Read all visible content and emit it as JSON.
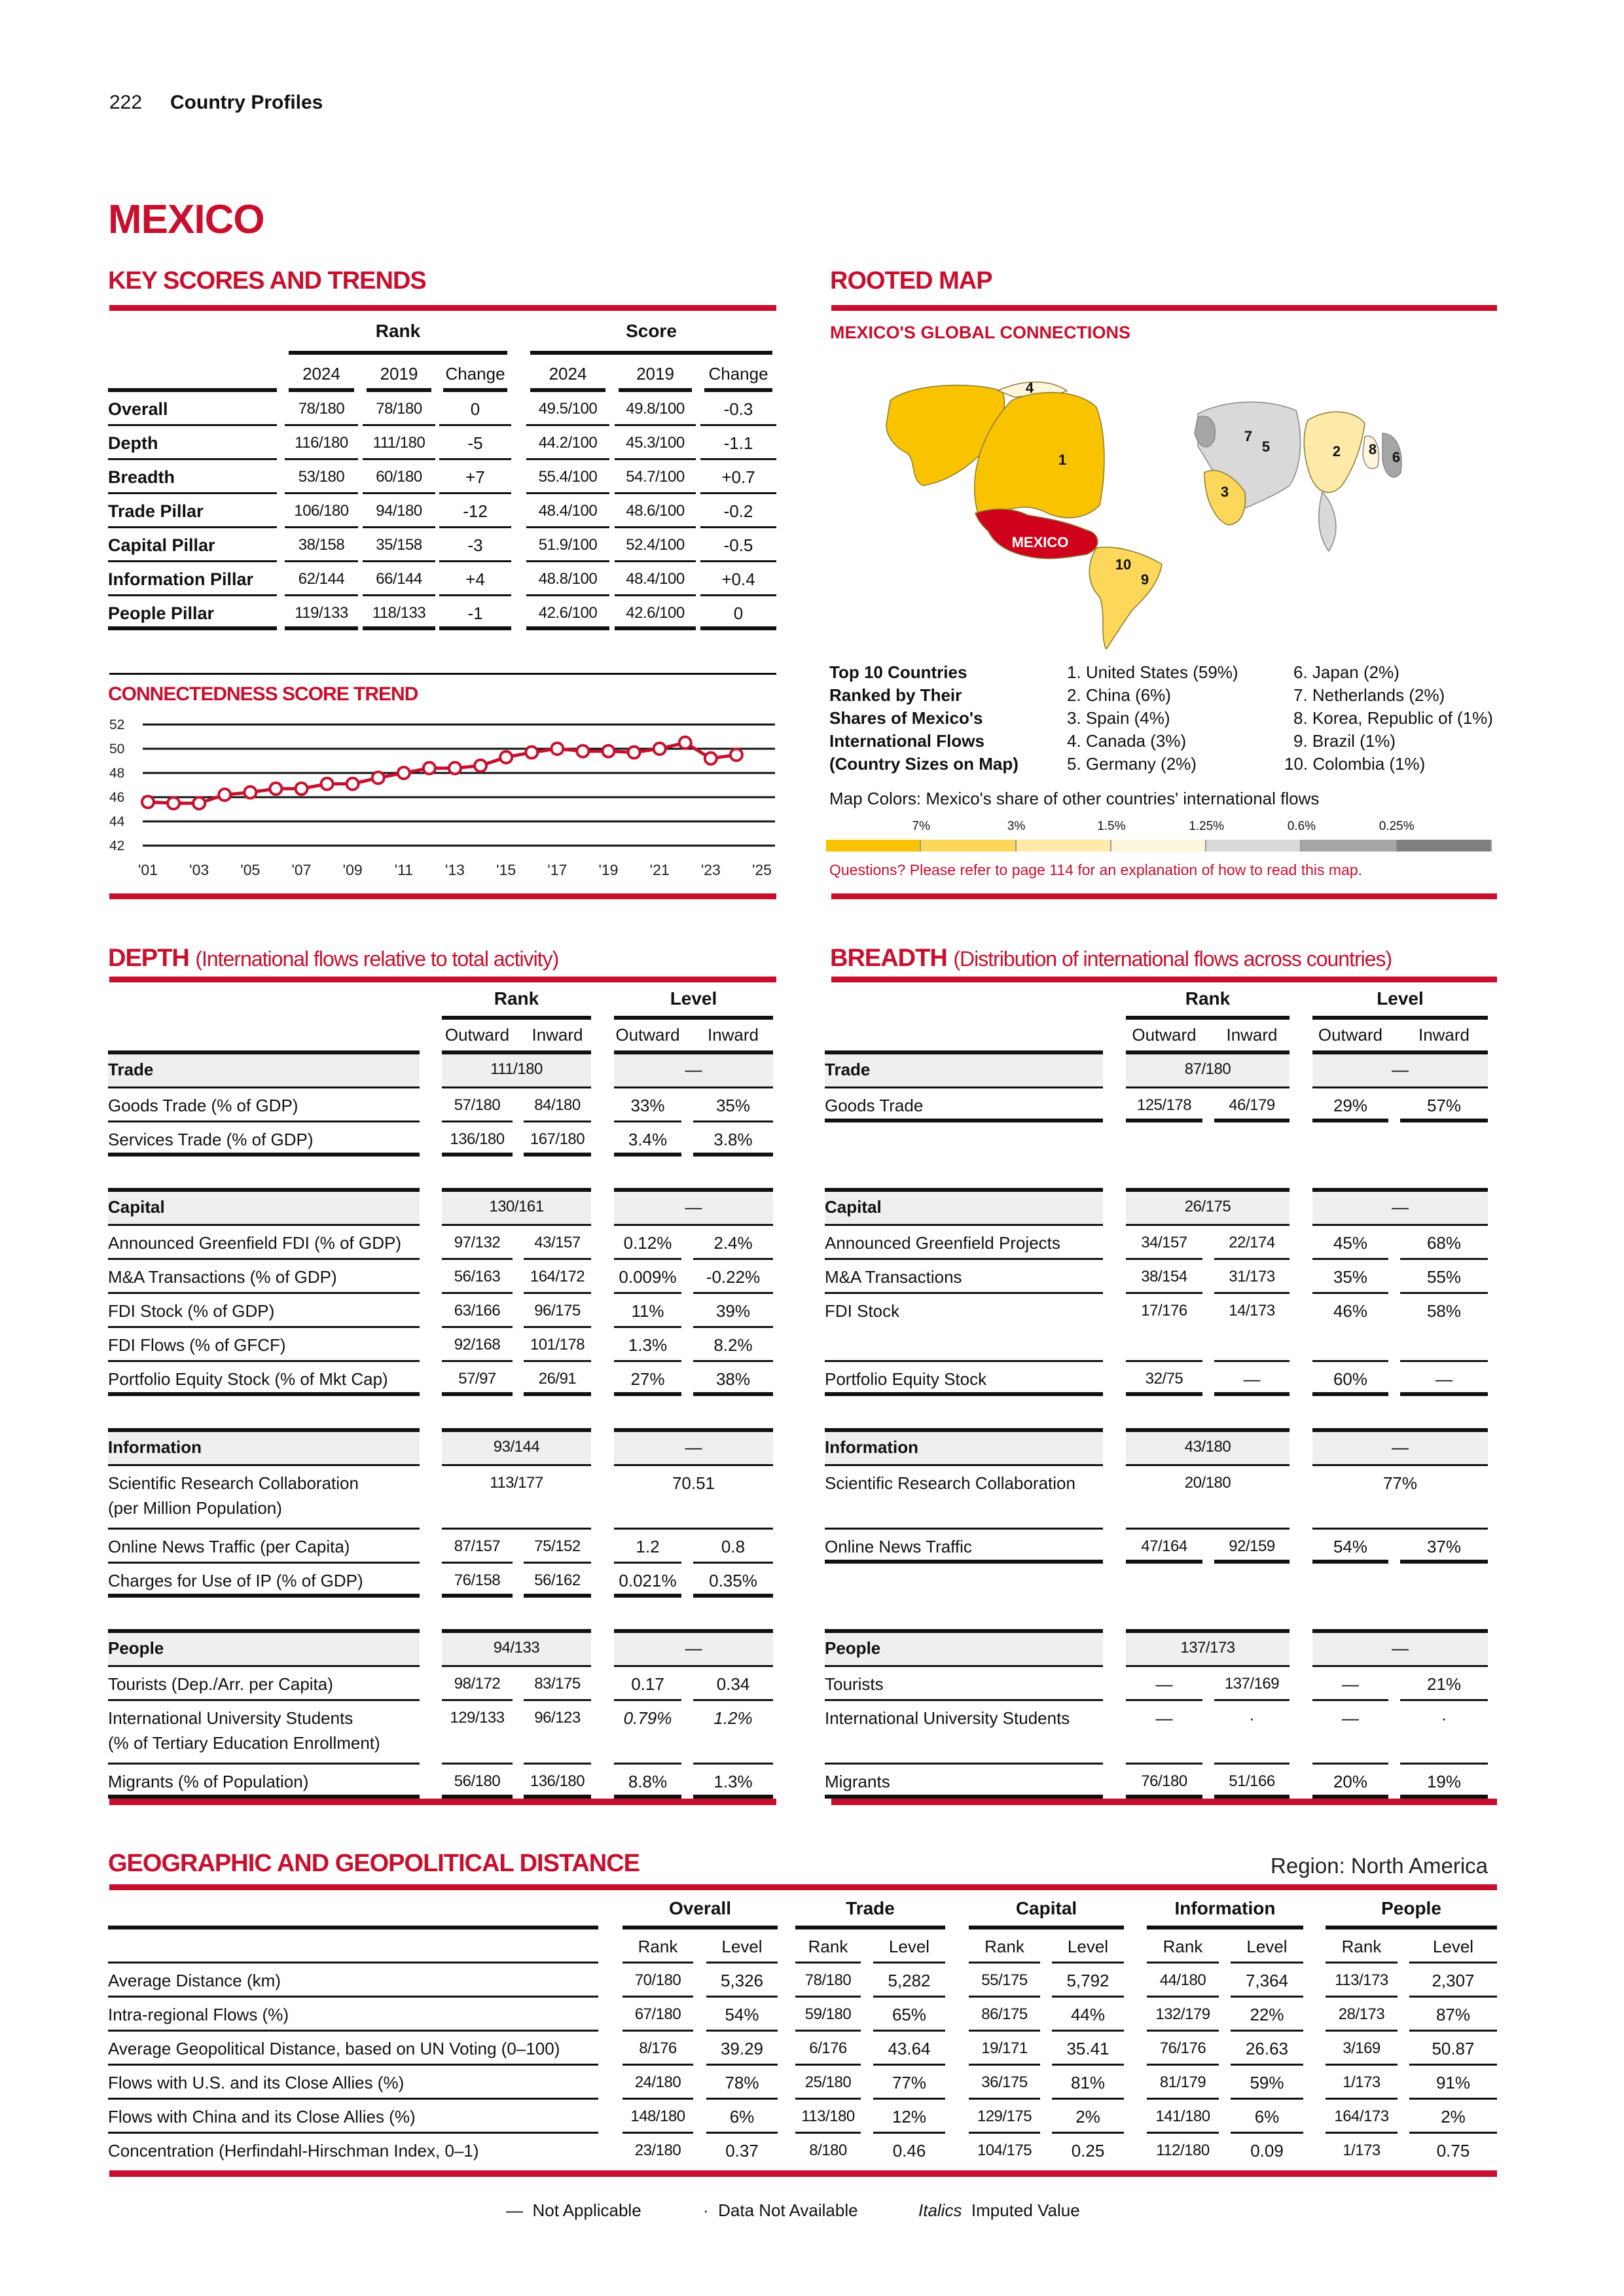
{
  "header": {
    "page_number": "222",
    "section": "Country Profiles"
  },
  "country": "MEXICO",
  "key_scores": {
    "title": "KEY SCORES AND TRENDS",
    "group_rank": "Rank",
    "group_score": "Score",
    "columns": [
      "2024",
      "2019",
      "Change",
      "2024",
      "2019",
      "Change"
    ],
    "rows": [
      {
        "label": "Overall",
        "cells": [
          "78/180",
          "78/180",
          "0",
          "49.5/100",
          "49.8/100",
          "-0.3"
        ]
      },
      {
        "label": "Depth",
        "cells": [
          "116/180",
          "111/180",
          "-5",
          "44.2/100",
          "45.3/100",
          "-1.1"
        ]
      },
      {
        "label": "Breadth",
        "cells": [
          "53/180",
          "60/180",
          "+7",
          "55.4/100",
          "54.7/100",
          "+0.7"
        ]
      },
      {
        "label": "Trade Pillar",
        "cells": [
          "106/180",
          "94/180",
          "-12",
          "48.4/100",
          "48.6/100",
          "-0.2"
        ]
      },
      {
        "label": "Capital Pillar",
        "cells": [
          "38/158",
          "35/158",
          "-3",
          "51.9/100",
          "52.4/100",
          "-0.5"
        ]
      },
      {
        "label": "Information Pillar",
        "cells": [
          "62/144",
          "66/144",
          "+4",
          "48.8/100",
          "48.4/100",
          "+0.4"
        ]
      },
      {
        "label": "People Pillar",
        "cells": [
          "119/133",
          "118/133",
          "-1",
          "42.6/100",
          "42.6/100",
          "0"
        ]
      }
    ]
  },
  "chart_data": {
    "type": "line",
    "title": "CONNECTEDNESS SCORE TREND",
    "x": [
      2001,
      2002,
      2003,
      2004,
      2005,
      2006,
      2007,
      2008,
      2009,
      2010,
      2011,
      2012,
      2013,
      2014,
      2015,
      2016,
      2017,
      2018,
      2019,
      2020,
      2021,
      2022,
      2023,
      2024
    ],
    "values": [
      45.6,
      45.5,
      45.5,
      46.2,
      46.4,
      46.7,
      46.7,
      47.1,
      47.1,
      47.6,
      48.0,
      48.4,
      48.4,
      48.6,
      49.3,
      49.7,
      50.0,
      49.8,
      49.8,
      49.7,
      50.0,
      50.5,
      49.2,
      49.5
    ],
    "ylim": [
      42,
      52
    ],
    "xlim": [
      2001,
      2025
    ],
    "yticks": [
      "52",
      "50",
      "48",
      "46",
      "44",
      "42"
    ],
    "xticks": [
      "'01",
      "'03",
      "'05",
      "'07",
      "'09",
      "'11",
      "'13",
      "'15",
      "'17",
      "'19",
      "'21",
      "'23",
      "'25"
    ],
    "grid": true,
    "color": "#c8102e"
  },
  "rooted_map": {
    "title": "ROOTED MAP",
    "subtitle": "MEXICO'S GLOBAL CONNECTIONS",
    "map_label": "MEXICO",
    "map_numbers": [
      "1",
      "2",
      "3",
      "4",
      "5",
      "6",
      "7",
      "8",
      "9",
      "10"
    ],
    "top10_heading": [
      "Top 10 Countries",
      "Ranked by Their",
      "Shares of Mexico's",
      "International Flows",
      "(Country Sizes on Map)"
    ],
    "top10": [
      "1. United States (59%)",
      "2. China (6%)",
      "3. Spain (4%)",
      "4. Canada (3%)",
      "5. Germany (2%)",
      "6. Japan (2%)",
      "7. Netherlands (2%)",
      "8. Korea, Republic of (1%)",
      "9. Brazil (1%)",
      "10. Colombia (1%)"
    ],
    "colors_caption": "Map Colors: Mexico's share of other countries' international flows",
    "legend_labels": [
      "7%",
      "3%",
      "1.5%",
      "1.25%",
      "0.6%",
      "0.25%"
    ],
    "legend_colors": [
      "#f9c300",
      "#fcd75a",
      "#fde9a8",
      "#fef6dc",
      "#d9d9d9",
      "#a6a6a6",
      "#808080"
    ],
    "note": "Questions? Please refer to page 114 for an explanation of how to read this map."
  },
  "depth": {
    "title": "DEPTH",
    "subtitle": "(International flows relative to total activity)",
    "group_rank": "Rank",
    "group_level": "Level",
    "subcolumns": [
      "Outward",
      "Inward",
      "Outward",
      "Inward"
    ],
    "groups": [
      {
        "label": "Trade",
        "rank": "111/180",
        "level": "—",
        "rows": [
          {
            "label": "Goods Trade (% of GDP)",
            "cells": [
              "57/180",
              "84/180",
              "33%",
              "35%"
            ]
          },
          {
            "label": "Services Trade (% of GDP)",
            "cells": [
              "136/180",
              "167/180",
              "3.4%",
              "3.8%"
            ]
          }
        ]
      },
      {
        "label": "Capital",
        "rank": "130/161",
        "level": "—",
        "rows": [
          {
            "label": "Announced Greenfield FDI (% of GDP)",
            "cells": [
              "97/132",
              "43/157",
              "0.12%",
              "2.4%"
            ]
          },
          {
            "label": "M&A Transactions (% of GDP)",
            "cells": [
              "56/163",
              "164/172",
              "0.009%",
              "-0.22%"
            ]
          },
          {
            "label": "FDI Stock (% of GDP)",
            "cells": [
              "63/166",
              "96/175",
              "11%",
              "39%"
            ]
          },
          {
            "label": "FDI Flows (% of GFCF)",
            "cells": [
              "92/168",
              "101/178",
              "1.3%",
              "8.2%"
            ]
          },
          {
            "label": "Portfolio Equity Stock (% of Mkt Cap)",
            "cells": [
              "57/97",
              "26/91",
              "27%",
              "38%"
            ]
          }
        ]
      },
      {
        "label": "Information",
        "rank": "93/144",
        "level": "—",
        "rows": [
          {
            "label": "Scientific Research Collaboration\n(per Million Population)",
            "cells": [
              "113/177",
              "70.51"
            ]
          },
          {
            "label": "Online News Traffic (per Capita)",
            "cells": [
              "87/157",
              "75/152",
              "1.2",
              "0.8"
            ]
          },
          {
            "label": "Charges for Use of IP (% of GDP)",
            "cells": [
              "76/158",
              "56/162",
              "0.021%",
              "0.35%"
            ]
          }
        ]
      },
      {
        "label": "People",
        "rank": "94/133",
        "level": "—",
        "rows": [
          {
            "label": "Tourists (Dep./Arr. per Capita)",
            "cells": [
              "98/172",
              "83/175",
              "0.17",
              "0.34"
            ]
          },
          {
            "label": "International University Students\n(% of Tertiary Education Enrollment)",
            "cells": [
              "129/133",
              "96/123",
              "0.79%",
              "1.2%"
            ],
            "imputed": [
              2,
              3
            ]
          },
          {
            "label": "Migrants (% of Population)",
            "cells": [
              "56/180",
              "136/180",
              "8.8%",
              "1.3%"
            ]
          }
        ]
      }
    ]
  },
  "breadth": {
    "title": "BREADTH",
    "subtitle": "(Distribution of international flows across countries)",
    "group_rank": "Rank",
    "group_level": "Level",
    "subcolumns": [
      "Outward",
      "Inward",
      "Outward",
      "Inward"
    ],
    "groups": [
      {
        "label": "Trade",
        "rank": "87/180",
        "level": "—",
        "rows": [
          {
            "label": "Goods Trade",
            "cells": [
              "125/178",
              "46/179",
              "29%",
              "57%"
            ]
          }
        ]
      },
      {
        "label": "Capital",
        "rank": "26/175",
        "level": "—",
        "rows": [
          {
            "label": "Announced Greenfield Projects",
            "cells": [
              "34/157",
              "22/174",
              "45%",
              "68%"
            ]
          },
          {
            "label": "M&A Transactions",
            "cells": [
              "38/154",
              "31/173",
              "35%",
              "55%"
            ]
          },
          {
            "label": "FDI Stock",
            "cells": [
              "17/176",
              "14/173",
              "46%",
              "58%"
            ]
          },
          {
            "label": "Portfolio Equity Stock",
            "cells": [
              "32/75",
              "—",
              "60%",
              "—"
            ]
          }
        ]
      },
      {
        "label": "Information",
        "rank": "43/180",
        "level": "—",
        "rows": [
          {
            "label": "Scientific Research Collaboration",
            "cells": [
              "20/180",
              "77%"
            ]
          },
          {
            "label": "Online News Traffic",
            "cells": [
              "47/164",
              "92/159",
              "54%",
              "37%"
            ]
          }
        ]
      },
      {
        "label": "People",
        "rank": "137/173",
        "level": "—",
        "rows": [
          {
            "label": "Tourists",
            "cells": [
              "—",
              "137/169",
              "—",
              "21%"
            ]
          },
          {
            "label": "International University Students",
            "cells": [
              "—",
              "·",
              "—",
              "·"
            ]
          },
          {
            "label": "Migrants",
            "cells": [
              "76/180",
              "51/166",
              "20%",
              "19%"
            ]
          }
        ]
      }
    ]
  },
  "geo": {
    "title": "GEOGRAPHIC AND GEOPOLITICAL DISTANCE",
    "region": "Region: North America",
    "groups": [
      "Overall",
      "Trade",
      "Capital",
      "Information",
      "People"
    ],
    "subcolumns": [
      "Rank",
      "Level",
      "Rank",
      "Level",
      "Rank",
      "Level",
      "Rank",
      "Level",
      "Rank",
      "Level"
    ],
    "rows": [
      {
        "label": "Average Distance (km)",
        "cells": [
          "70/180",
          "5,326",
          "78/180",
          "5,282",
          "55/175",
          "5,792",
          "44/180",
          "7,364",
          "113/173",
          "2,307"
        ]
      },
      {
        "label": "Intra-regional Flows (%)",
        "cells": [
          "67/180",
          "54%",
          "59/180",
          "65%",
          "86/175",
          "44%",
          "132/179",
          "22%",
          "28/173",
          "87%"
        ]
      },
      {
        "label": "Average Geopolitical Distance, based on UN Voting (0–100)",
        "cells": [
          "8/176",
          "39.29",
          "6/176",
          "43.64",
          "19/171",
          "35.41",
          "76/176",
          "26.63",
          "3/169",
          "50.87"
        ]
      },
      {
        "label": "Flows with U.S. and its Close Allies (%)",
        "cells": [
          "24/180",
          "78%",
          "25/180",
          "77%",
          "36/175",
          "81%",
          "81/179",
          "59%",
          "1/173",
          "91%"
        ]
      },
      {
        "label": "Flows with China and its Close Allies (%)",
        "cells": [
          "148/180",
          "6%",
          "113/180",
          "12%",
          "129/175",
          "2%",
          "141/180",
          "6%",
          "164/173",
          "2%"
        ]
      },
      {
        "label": "Concentration (Herfindahl-Hirschman Index, 0–1)",
        "cells": [
          "23/180",
          "0.37",
          "8/180",
          "0.46",
          "104/175",
          "0.25",
          "112/180",
          "0.09",
          "1/173",
          "0.75"
        ]
      }
    ]
  },
  "legend": {
    "not_applicable_symbol": "—",
    "not_applicable": "Not Applicable",
    "not_available_symbol": "·",
    "not_available": "Data Not Available",
    "imputed_symbol": "Italics",
    "imputed": "Imputed Value"
  }
}
